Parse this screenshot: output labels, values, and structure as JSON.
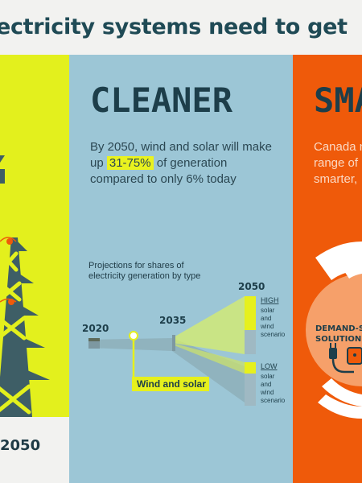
{
  "headline": "lectricity systems need to get",
  "left": {
    "year": "2050"
  },
  "cleaner": {
    "title": "CLEANER",
    "body_pre": "By 2050, wind and solar will make up ",
    "highlight": "31-75%",
    "body_post": " of generation compared to only 6% today",
    "projection_label": "Projections for shares of electricity generation by type",
    "years": [
      "2020",
      "2035",
      "2050"
    ],
    "high_label": "HIGH",
    "high_desc": [
      "solar",
      "and",
      "wind",
      "scenario"
    ],
    "low_label": "LOW",
    "low_desc": [
      "solar",
      "and",
      "wind",
      "scenario"
    ],
    "callout": "Wind and solar"
  },
  "smarter": {
    "title": "SMA",
    "body_lines": [
      "Canada n",
      "range of",
      "smarter,"
    ],
    "badge_lines": [
      "DEMAND-S",
      "SOLUTIONS"
    ]
  },
  "colors": {
    "yellow": "#e3f01d",
    "blue": "#9cc6d6",
    "orange": "#ef5a0a",
    "dark": "#1d3e4a",
    "highlight": "#e9f21f"
  }
}
